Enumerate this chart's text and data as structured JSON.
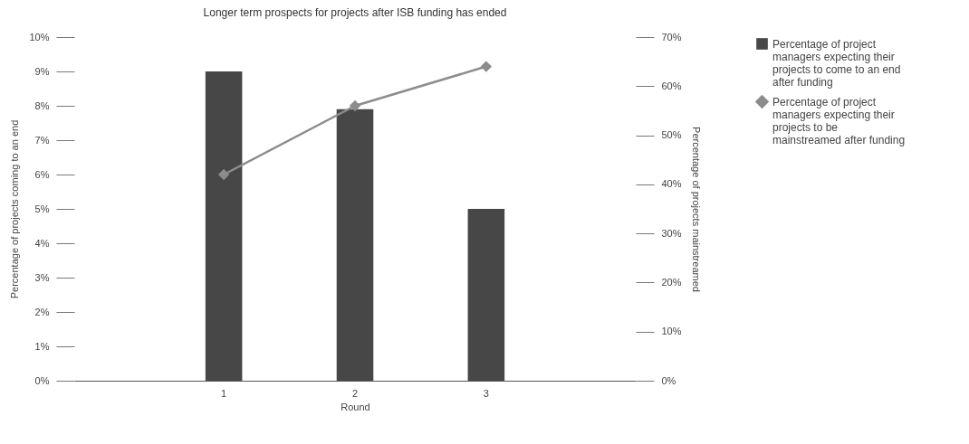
{
  "chart_data": {
    "type": "bar",
    "title": "Longer term prospects for projects after ISB funding has ended",
    "xlabel": "Round",
    "ylabel": "Percentage of projects coming to an end",
    "y2label": "Percentage of projects mainstreamed",
    "categories": [
      "1",
      "2",
      "3"
    ],
    "series": [
      {
        "name": "Percentage of project managers expecting their projects to come to an end after funding",
        "color": "#474747",
        "values": [
          9,
          7.9,
          5
        ]
      },
      {
        "name": "Percentage of project managers expecting their projects to be mainstreamed after funding",
        "color": "#8c8c8c",
        "type": "line",
        "axis": "y2",
        "values": [
          42,
          56,
          64
        ]
      }
    ],
    "ylim": [
      0,
      10
    ],
    "yticks": [
      {
        "value": 0,
        "label": "0%"
      },
      {
        "value": 1,
        "label": "1%"
      },
      {
        "value": 2,
        "label": "2%"
      },
      {
        "value": 3,
        "label": "3%"
      },
      {
        "value": 4,
        "label": "4%"
      },
      {
        "value": 5,
        "label": "5%"
      },
      {
        "value": 6,
        "label": "6%"
      },
      {
        "value": 7,
        "label": "7%"
      },
      {
        "value": 8,
        "label": "8%"
      },
      {
        "value": 9,
        "label": "9%"
      },
      {
        "value": 10,
        "label": "10%"
      }
    ],
    "y2lim": [
      0,
      70
    ],
    "y2ticks": [
      {
        "value": 0,
        "label": "0%"
      },
      {
        "value": 10,
        "label": "10%"
      },
      {
        "value": 20,
        "label": "20%"
      },
      {
        "value": 30,
        "label": "30%"
      },
      {
        "value": 40,
        "label": "40%"
      },
      {
        "value": 50,
        "label": "50%"
      },
      {
        "value": 60,
        "label": "60%"
      },
      {
        "value": 70,
        "label": "70%"
      }
    ],
    "grid": false,
    "legend": "right",
    "marker": "diamond"
  }
}
